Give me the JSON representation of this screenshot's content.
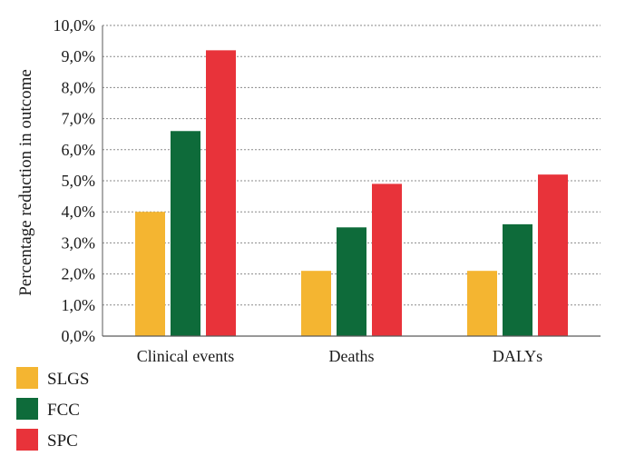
{
  "chart_data": {
    "type": "bar",
    "categories": [
      "Clinical events",
      "Deaths",
      "DALYs"
    ],
    "series": [
      {
        "name": "SLGS",
        "color": "#f4b531",
        "values": [
          4.0,
          2.1,
          2.1
        ]
      },
      {
        "name": "FCC",
        "color": "#0e6b3a",
        "values": [
          6.6,
          3.5,
          3.6
        ]
      },
      {
        "name": "SPC",
        "color": "#e8333a",
        "values": [
          9.2,
          4.9,
          5.2
        ]
      }
    ],
    "title": "",
    "xlabel": "",
    "ylabel": "Percentage reduction in outcome",
    "ylim": [
      0,
      10
    ],
    "yticks": [
      0,
      1,
      2,
      3,
      4,
      5,
      6,
      7,
      8,
      9,
      10
    ],
    "ytick_labels": [
      "0,0%",
      "1,0%",
      "2,0%",
      "3,0%",
      "4,0%",
      "5,0%",
      "6,0%",
      "7,0%",
      "8,0%",
      "9,0%",
      "10,0%"
    ],
    "grid": true,
    "legend_position": "bottom-left"
  }
}
